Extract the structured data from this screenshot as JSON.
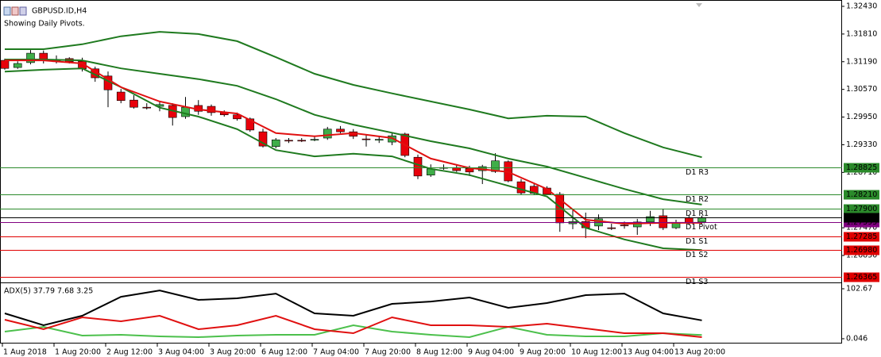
{
  "chart_data": [
    {
      "type": "candlestick",
      "title": "GBPUSD.ID,H4",
      "subtitle": "Showing Daily Pivots.",
      "categories": [
        "1 Aug 2018",
        null,
        null,
        null,
        "1 Aug 20:00",
        null,
        null,
        null,
        "2 Aug 12:00",
        null,
        null,
        null,
        "3 Aug 04:00",
        null,
        null,
        null,
        "3 Aug 20:00",
        null,
        null,
        null,
        "6 Aug 12:00",
        null,
        null,
        null,
        "7 Aug 04:00",
        null,
        null,
        null,
        "7 Aug 20:00",
        null,
        null,
        null,
        "8 Aug 12:00",
        null,
        null,
        null,
        "9 Aug 04:00",
        null,
        null,
        null,
        "9 Aug 20:00",
        null,
        null,
        null,
        "10 Aug 12:00",
        null,
        null,
        null,
        "13 Aug 04:00",
        null,
        null,
        null,
        "13 Aug 20:00",
        null,
        null
      ],
      "open": [
        1.3122,
        1.3106,
        1.3117,
        1.3138,
        1.3124,
        1.3126,
        1.312,
        1.3103,
        1.3087,
        1.3051,
        1.3033,
        1.3017,
        1.3019,
        1.3021,
        1.2996,
        1.3021,
        1.3019,
        1.3005,
        1.3,
        1.2991,
        1.2962,
        1.2929,
        1.2943,
        1.2943,
        1.2944,
        1.2948,
        1.2968,
        1.2962,
        1.2946,
        1.2944,
        1.2939,
        1.2957,
        1.2905,
        1.2865,
        1.2882,
        1.2882,
        1.288,
        1.2875,
        1.2873,
        1.2895,
        1.285,
        1.284,
        1.2836,
        1.2822,
        1.2756,
        1.2761,
        1.2751,
        1.2747,
        1.2753,
        1.2749,
        1.276,
        1.2774,
        1.2747,
        1.2769,
        1.276
      ],
      "high": [
        1.3126,
        1.312,
        1.3145,
        1.3144,
        1.3133,
        1.3129,
        1.3128,
        1.3108,
        1.3097,
        1.3058,
        1.3044,
        1.3026,
        1.303,
        1.3026,
        1.304,
        1.3033,
        1.3023,
        1.301,
        1.3005,
        1.2994,
        1.2969,
        1.2948,
        1.2948,
        1.2948,
        1.2952,
        1.2973,
        1.2975,
        1.2968,
        1.2955,
        1.2952,
        1.2959,
        1.296,
        1.2911,
        1.2889,
        1.2889,
        1.2889,
        1.2886,
        1.2888,
        1.2914,
        1.2898,
        1.2856,
        1.2845,
        1.284,
        1.2827,
        1.2786,
        1.2781,
        1.2777,
        1.2756,
        1.2761,
        1.2767,
        1.2785,
        1.279,
        1.2765,
        1.2776,
        1.2774
      ],
      "low": [
        1.3101,
        1.3103,
        1.3113,
        1.3115,
        1.3115,
        1.3115,
        1.3097,
        1.3074,
        1.3017,
        1.3026,
        1.3014,
        1.3012,
        1.3008,
        1.2976,
        1.2991,
        1.3,
        1.2998,
        1.2996,
        1.2987,
        1.2962,
        1.2927,
        1.2925,
        1.2937,
        1.2939,
        1.2941,
        1.2944,
        1.2959,
        1.2946,
        1.2929,
        1.2937,
        1.2932,
        1.2905,
        1.2856,
        1.2861,
        1.2877,
        1.2872,
        1.2863,
        1.2845,
        1.287,
        1.2849,
        1.282,
        1.282,
        1.282,
        1.2738,
        1.2744,
        1.2724,
        1.2742,
        1.2742,
        1.2745,
        1.2731,
        1.2751,
        1.2742,
        1.2744,
        1.2753,
        1.2756
      ],
      "close": [
        1.3104,
        1.3115,
        1.3138,
        1.3122,
        1.3119,
        1.3119,
        1.3103,
        1.3083,
        1.3056,
        1.3032,
        1.3017,
        1.3016,
        1.3023,
        1.2994,
        1.3017,
        1.3008,
        1.3005,
        1.3,
        1.2991,
        1.2966,
        1.293,
        1.2944,
        1.2942,
        1.2942,
        1.2945,
        1.2968,
        1.2962,
        1.2952,
        1.2945,
        1.2945,
        1.2953,
        1.2909,
        1.2863,
        1.2879,
        1.2881,
        1.2875,
        1.2872,
        1.2884,
        1.2897,
        1.2852,
        1.2825,
        1.2824,
        1.2822,
        1.2758,
        1.2761,
        1.2747,
        1.2767,
        1.2746,
        1.2752,
        1.276,
        1.2772,
        1.2747,
        1.2758,
        1.2758,
        1.277
      ],
      "up_color": "#3fae49",
      "down_color": "#e8000b",
      "overlays": [
        {
          "color": "#1f7a1f",
          "x": [
            0,
            3,
            6,
            9,
            12,
            15,
            18,
            21,
            24,
            27,
            30,
            33,
            36,
            39,
            42,
            45,
            48,
            51,
            54
          ],
          "values": [
            1.3147,
            1.3147,
            1.3158,
            1.3176,
            1.3186,
            1.3181,
            1.3165,
            1.3129,
            1.3092,
            1.3067,
            1.3048,
            1.303,
            1.3012,
            1.2992,
            1.2998,
            1.2996,
            1.2959,
            1.2927,
            1.2905
          ]
        },
        {
          "color": "#1f7a1f",
          "x": [
            0,
            3,
            6,
            9,
            12,
            15,
            18,
            21,
            24,
            27,
            30,
            33,
            36,
            39,
            42,
            45,
            48,
            51,
            54
          ],
          "values": [
            1.3124,
            1.3124,
            1.3122,
            1.3104,
            1.3092,
            1.308,
            1.3065,
            1.3035,
            1.3,
            1.2978,
            1.296,
            1.2941,
            1.2925,
            1.2902,
            1.2884,
            1.2859,
            1.2834,
            1.2811,
            1.2799
          ]
        },
        {
          "color": "#1f7a1f",
          "x": [
            0,
            3,
            6,
            9,
            12,
            15,
            18,
            21,
            24,
            27,
            30,
            33,
            36,
            39,
            42,
            45,
            48,
            51,
            54
          ],
          "values": [
            1.3097,
            1.3101,
            1.3104,
            1.3062,
            1.3016,
            1.2996,
            1.2968,
            1.2921,
            1.2907,
            1.2913,
            1.2907,
            1.2879,
            1.2865,
            1.2841,
            1.2817,
            1.2747,
            1.2721,
            1.2701,
            1.2697
          ]
        },
        {
          "color": "#e01010",
          "x": [
            0,
            3,
            6,
            9,
            12,
            15,
            18,
            21,
            24,
            27,
            30,
            33,
            36,
            39,
            42,
            45,
            48,
            51,
            54
          ],
          "values": [
            1.3122,
            1.3122,
            1.3115,
            1.3062,
            1.303,
            1.3012,
            1.3003,
            1.2959,
            1.2952,
            1.2959,
            1.2948,
            1.2902,
            1.2881,
            1.2872,
            1.2834,
            1.2765,
            1.2756,
            1.2758,
            1.2758
          ]
        }
      ],
      "levels": [
        {
          "name": "D1 R3",
          "value": 1.28825,
          "label": "1.28825",
          "color": "#2b8a2b"
        },
        {
          "name": "D1 R2",
          "value": 1.2821,
          "label": "1.28210",
          "color": "#2b8a2b"
        },
        {
          "name": "D1 R1",
          "value": 1.279,
          "label": "1.27900",
          "color": "#2b8a2b"
        },
        {
          "name": "D1 Pivot",
          "value": 1.27595,
          "label": "1.27595",
          "color": "#800080"
        },
        {
          "name": "D1 S1",
          "value": 1.27285,
          "label": "1.27285",
          "color": "#e00000"
        },
        {
          "name": "D1 S2",
          "value": 1.2698,
          "label": "1.26980",
          "color": "#e00000"
        },
        {
          "name": "D1 S3",
          "value": 1.26365,
          "label": "1.26365",
          "color": "#e00000"
        }
      ],
      "current_price": {
        "value": 1.27703,
        "label": "1.27703",
        "color": "#000000"
      },
      "ylim": [
        1.26264,
        1.32572
      ],
      "yticks": [
        {
          "value": 1.3243,
          "label": "1.32430"
        },
        {
          "value": 1.3181,
          "label": "1.31810"
        },
        {
          "value": 1.3119,
          "label": "1.31190"
        },
        {
          "value": 1.3057,
          "label": "1.30570"
        },
        {
          "value": 1.2995,
          "label": "1.29950"
        },
        {
          "value": 1.2933,
          "label": "1.29330"
        },
        {
          "value": 1.2871,
          "label": "1.28710"
        },
        {
          "value": 1.2747,
          "label": "1.27470"
        },
        {
          "value": 1.2685,
          "label": "1.26850"
        }
      ]
    },
    {
      "type": "line",
      "title": "ADX(5) 37.79 7.68 3.25",
      "x": [
        0,
        3,
        6,
        9,
        12,
        15,
        18,
        21,
        24,
        27,
        30,
        33,
        36,
        39,
        42,
        45,
        48,
        51,
        54
      ],
      "series": [
        {
          "color": "#000000",
          "values": [
            52.1,
            27.7,
            47.2,
            86.3,
            99.3,
            79.8,
            83.1,
            92.8,
            52.1,
            47.2,
            71.7,
            76.5,
            84.7,
            63.5,
            73.3,
            89.6,
            92.8,
            52.1,
            37.79
          ]
        },
        {
          "color": "#4cc04c",
          "values": [
            14.7,
            24.4,
            6.5,
            8.1,
            4.9,
            3.3,
            6.5,
            8.1,
            8.1,
            27.7,
            14.7,
            8.1,
            3.3,
            24.4,
            8.1,
            4.9,
            4.9,
            11.4,
            7.68
          ]
        },
        {
          "color": "#e01010",
          "values": [
            39.1,
            19.5,
            44.0,
            35.8,
            47.2,
            19.5,
            27.7,
            47.2,
            19.5,
            11.4,
            44.0,
            27.7,
            27.7,
            24.4,
            30.9,
            21.2,
            11.4,
            11.4,
            3.25
          ]
        }
      ],
      "ylim": [
        -9.8,
        114.1
      ],
      "yticks": [
        102.67,
        0.046
      ]
    }
  ]
}
